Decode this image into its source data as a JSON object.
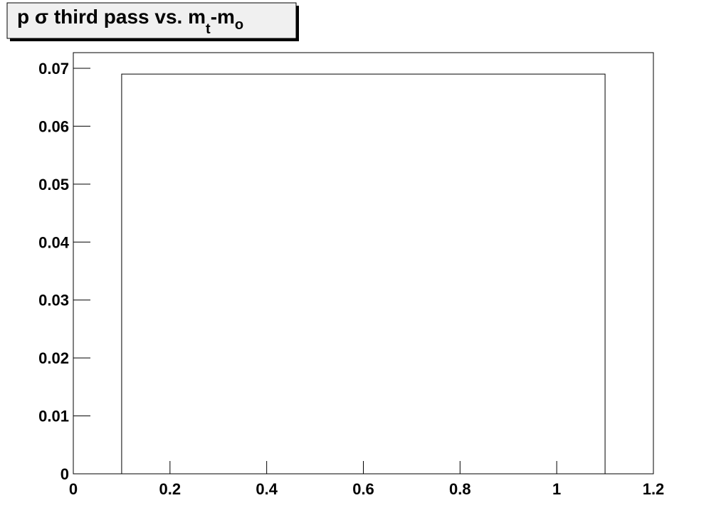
{
  "chart_data": {
    "type": "histogram",
    "title": [
      "p σ third pass vs. m",
      "t",
      "-m",
      "o"
    ],
    "bins": [
      0.1,
      1.1
    ],
    "counts": [
      0.069
    ],
    "color": "#000000",
    "xlim": [
      0,
      1.2
    ],
    "xticks": [
      0,
      0.2,
      0.4,
      0.6,
      0.8,
      1,
      1.2
    ],
    "ylim": [
      0,
      0.0727
    ],
    "yticks": [
      0,
      0.01,
      0.02,
      0.03,
      0.04,
      0.05,
      0.06,
      0.07
    ]
  }
}
